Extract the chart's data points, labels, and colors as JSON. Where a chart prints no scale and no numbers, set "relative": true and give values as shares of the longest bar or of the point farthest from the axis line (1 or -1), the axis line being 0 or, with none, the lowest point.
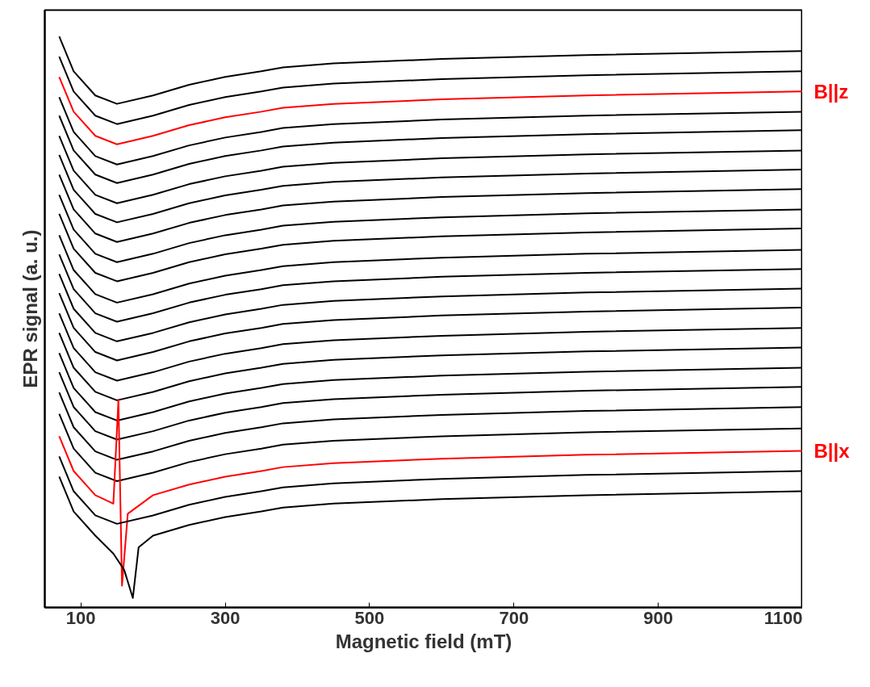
{
  "chart_data": {
    "type": "line",
    "xlabel": "Magnetic field (mT)",
    "ylabel": "EPR signal (a. u.)",
    "relative": true,
    "tick_labels": "x",
    "grid": false,
    "xlim": [
      50,
      1100
    ],
    "xticks": [
      100,
      300,
      500,
      700,
      900,
      1100
    ],
    "x": [
      70,
      90,
      120,
      150,
      200,
      250,
      300,
      350,
      380,
      450,
      600,
      800,
      1100
    ],
    "series": [
      {
        "color": "#000000",
        "values": [
          1.0,
          0.938,
          0.895,
          0.88,
          0.895,
          0.914,
          0.928,
          0.938,
          0.945,
          0.952,
          0.96,
          0.967,
          0.974
        ]
      },
      {
        "color": "#000000",
        "values": [
          0.964,
          0.902,
          0.859,
          0.844,
          0.859,
          0.878,
          0.892,
          0.902,
          0.909,
          0.916,
          0.924,
          0.931,
          0.938
        ]
      },
      {
        "name": "B||z",
        "color": "#ff0000",
        "values": [
          0.928,
          0.866,
          0.823,
          0.808,
          0.823,
          0.842,
          0.856,
          0.866,
          0.873,
          0.88,
          0.888,
          0.895,
          0.902
        ]
      },
      {
        "color": "#000000",
        "values": [
          0.892,
          0.83,
          0.787,
          0.772,
          0.787,
          0.806,
          0.82,
          0.83,
          0.837,
          0.844,
          0.852,
          0.859,
          0.866
        ]
      },
      {
        "color": "#000000",
        "values": [
          0.859,
          0.797,
          0.754,
          0.739,
          0.754,
          0.773,
          0.787,
          0.797,
          0.804,
          0.811,
          0.819,
          0.826,
          0.833
        ]
      },
      {
        "color": "#000000",
        "values": [
          0.823,
          0.761,
          0.718,
          0.703,
          0.718,
          0.737,
          0.751,
          0.761,
          0.768,
          0.775,
          0.783,
          0.79,
          0.797
        ]
      },
      {
        "color": "#000000",
        "values": [
          0.789,
          0.727,
          0.684,
          0.669,
          0.684,
          0.703,
          0.717,
          0.727,
          0.734,
          0.741,
          0.749,
          0.756,
          0.763
        ]
      },
      {
        "color": "#000000",
        "values": [
          0.754,
          0.692,
          0.649,
          0.634,
          0.649,
          0.668,
          0.682,
          0.692,
          0.699,
          0.706,
          0.714,
          0.721,
          0.728
        ]
      },
      {
        "color": "#000000",
        "values": [
          0.718,
          0.656,
          0.613,
          0.598,
          0.613,
          0.632,
          0.646,
          0.656,
          0.663,
          0.67,
          0.678,
          0.685,
          0.692
        ]
      },
      {
        "color": "#000000",
        "values": [
          0.684,
          0.622,
          0.579,
          0.564,
          0.579,
          0.598,
          0.612,
          0.622,
          0.629,
          0.636,
          0.644,
          0.651,
          0.658
        ]
      },
      {
        "color": "#000000",
        "values": [
          0.646,
          0.584,
          0.541,
          0.526,
          0.541,
          0.56,
          0.574,
          0.584,
          0.591,
          0.598,
          0.606,
          0.613,
          0.62
        ]
      },
      {
        "color": "#000000",
        "values": [
          0.612,
          0.55,
          0.507,
          0.492,
          0.507,
          0.526,
          0.54,
          0.55,
          0.557,
          0.564,
          0.572,
          0.579,
          0.586
        ]
      },
      {
        "color": "#000000",
        "values": [
          0.577,
          0.515,
          0.472,
          0.457,
          0.472,
          0.491,
          0.505,
          0.515,
          0.522,
          0.529,
          0.537,
          0.544,
          0.551
        ]
      },
      {
        "color": "#000000",
        "values": [
          0.543,
          0.481,
          0.438,
          0.423,
          0.438,
          0.457,
          0.471,
          0.481,
          0.488,
          0.495,
          0.503,
          0.51,
          0.517
        ]
      },
      {
        "color": "#000000",
        "values": [
          0.507,
          0.445,
          0.402,
          0.387,
          0.402,
          0.421,
          0.435,
          0.445,
          0.452,
          0.459,
          0.467,
          0.474,
          0.481
        ]
      },
      {
        "color": "#000000",
        "values": [
          0.472,
          0.41,
          0.367,
          0.352,
          0.367,
          0.386,
          0.4,
          0.41,
          0.417,
          0.424,
          0.432,
          0.439,
          0.446
        ]
      },
      {
        "color": "#000000",
        "values": [
          0.436,
          0.374,
          0.331,
          0.316,
          0.331,
          0.35,
          0.364,
          0.374,
          0.381,
          0.388,
          0.396,
          0.403,
          0.41
        ]
      },
      {
        "color": "#000000",
        "values": [
          0.402,
          0.34,
          0.297,
          0.282,
          0.297,
          0.316,
          0.33,
          0.34,
          0.347,
          0.354,
          0.362,
          0.369,
          0.376
        ]
      },
      {
        "color": "#000000",
        "values": [
          0.366,
          0.304,
          0.261,
          0.246,
          0.261,
          0.28,
          0.294,
          0.304,
          0.311,
          0.318,
          0.326,
          0.333,
          0.34
        ]
      },
      {
        "color": "#000000",
        "values": [
          0.328,
          0.266,
          0.223,
          0.208,
          0.223,
          0.242,
          0.256,
          0.266,
          0.273,
          0.28,
          0.288,
          0.295,
          0.302
        ]
      },
      {
        "name": "B||x",
        "color": "#ff0000",
        "x": [
          70,
          90,
          120,
          145,
          152,
          157,
          165,
          200,
          250,
          300,
          350,
          380,
          450,
          600,
          800,
          1100
        ],
        "values": [
          0.288,
          0.226,
          0.183,
          0.168,
          0.353,
          0.022,
          0.15,
          0.183,
          0.202,
          0.216,
          0.226,
          0.233,
          0.24,
          0.248,
          0.255,
          0.262
        ]
      },
      {
        "color": "#000000",
        "values": [
          0.252,
          0.19,
          0.147,
          0.132,
          0.147,
          0.166,
          0.18,
          0.19,
          0.197,
          0.204,
          0.212,
          0.219,
          0.226
        ]
      },
      {
        "color": "#000000",
        "x": [
          70,
          90,
          120,
          145,
          160,
          172,
          180,
          200,
          250,
          300,
          350,
          380,
          450,
          600,
          800,
          1100
        ],
        "values": [
          0.216,
          0.154,
          0.111,
          0.079,
          0.05,
          0.0,
          0.09,
          0.111,
          0.13,
          0.144,
          0.154,
          0.161,
          0.168,
          0.176,
          0.183,
          0.19
        ]
      }
    ]
  }
}
